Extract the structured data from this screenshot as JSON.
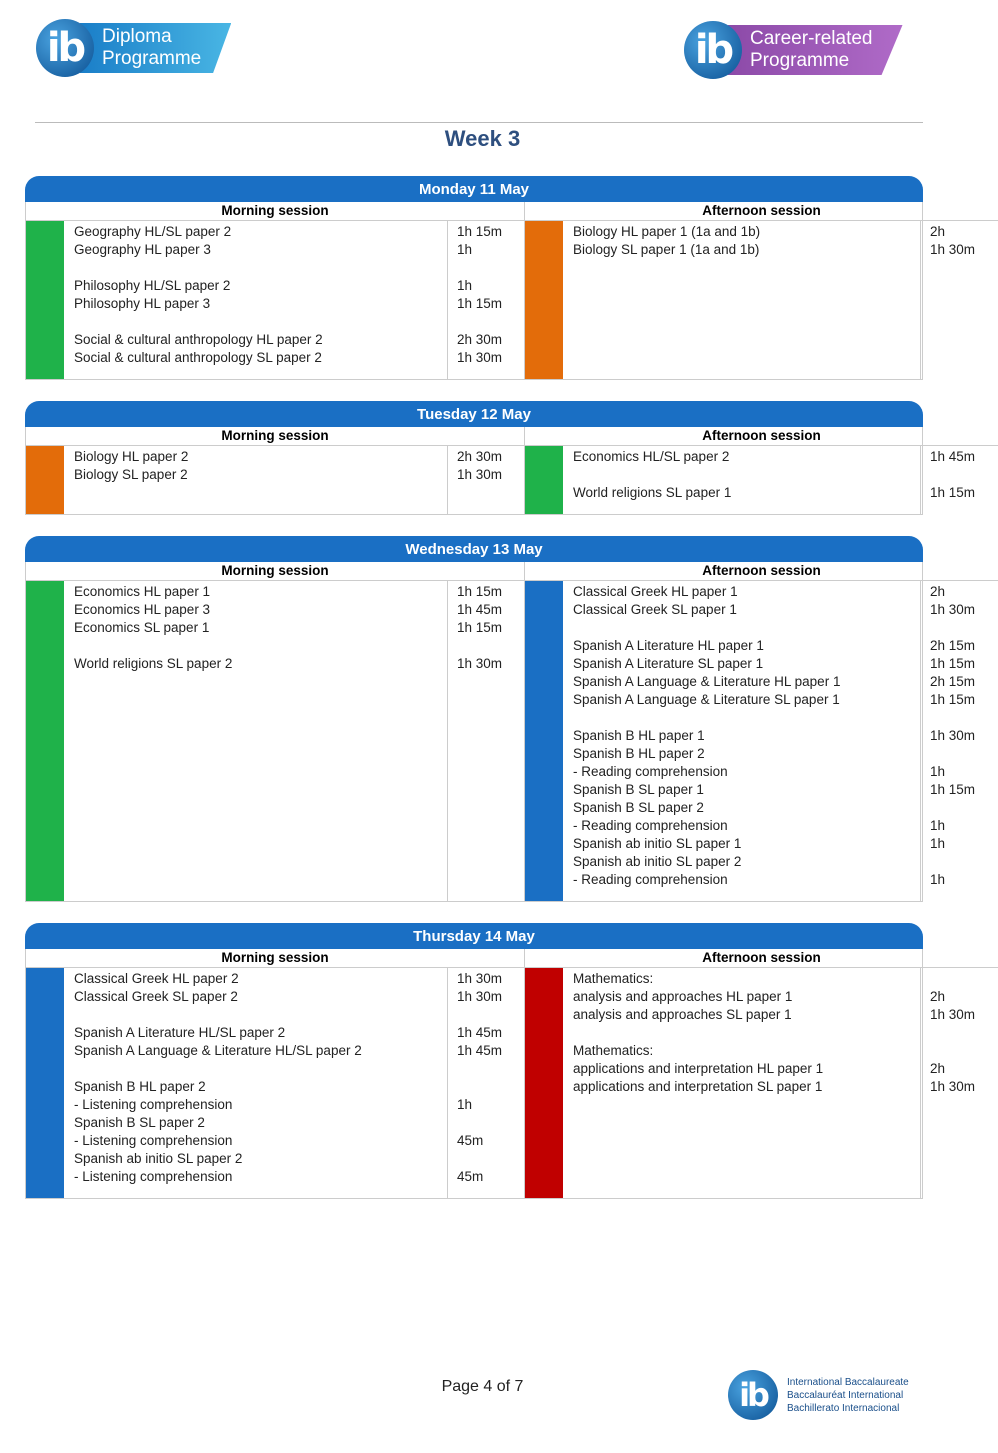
{
  "header": {
    "left_logo": {
      "mark": "ib",
      "line1": "Diploma",
      "line2": "Programme"
    },
    "right_logo": {
      "mark": "ib",
      "line1": "Career-related",
      "line2": "Programme"
    }
  },
  "title": "Week 3",
  "days": [
    {
      "title": "Monday 11 May",
      "morning": {
        "heading": "Morning session",
        "color": "#1fb24a",
        "groups": [
          [
            {
              "lines": [
                "Geography HL/SL paper 2"
              ],
              "duration": "1h 15m"
            },
            {
              "lines": [
                "Geography HL paper 3"
              ],
              "duration": "1h"
            }
          ],
          [
            {
              "lines": [
                "Philosophy HL/SL paper 2"
              ],
              "duration": "1h"
            },
            {
              "lines": [
                "Philosophy HL paper 3"
              ],
              "duration": "1h 15m"
            }
          ],
          [
            {
              "lines": [
                "Social & cultural anthropology HL paper 2"
              ],
              "duration": "2h 30m"
            },
            {
              "lines": [
                "Social & cultural anthropology SL paper 2"
              ],
              "duration": "1h 30m"
            }
          ]
        ]
      },
      "afternoon": {
        "heading": "Afternoon session",
        "color": "#e36c0a",
        "groups": [
          [
            {
              "lines": [
                "Biology HL paper 1 (1a and 1b)"
              ],
              "duration": "2h"
            },
            {
              "lines": [
                "Biology SL paper 1 (1a and 1b)"
              ],
              "duration": "1h 30m"
            }
          ]
        ]
      }
    },
    {
      "title": "Tuesday 12 May",
      "morning": {
        "heading": "Morning session",
        "color": "#e36c0a",
        "groups": [
          [
            {
              "lines": [
                "Biology HL paper 2"
              ],
              "duration": "2h 30m"
            },
            {
              "lines": [
                "Biology SL paper 2"
              ],
              "duration": "1h 30m"
            }
          ]
        ]
      },
      "afternoon": {
        "heading": "Afternoon session",
        "color": "#1fb24a",
        "groups": [
          [
            {
              "lines": [
                "Economics HL/SL paper 2"
              ],
              "duration": "1h 45m"
            }
          ],
          [
            {
              "lines": [
                "World religions SL paper 1"
              ],
              "duration": "1h 15m"
            }
          ]
        ]
      }
    },
    {
      "title": "Wednesday 13 May",
      "morning": {
        "heading": "Morning session",
        "color": "#1fb24a",
        "groups": [
          [
            {
              "lines": [
                "Economics HL paper 1"
              ],
              "duration": "1h 15m"
            },
            {
              "lines": [
                "Economics HL paper 3"
              ],
              "duration": "1h 45m"
            },
            {
              "lines": [
                "Economics SL paper 1"
              ],
              "duration": "1h 15m"
            }
          ],
          [
            {
              "lines": [
                "World religions SL paper 2"
              ],
              "duration": "1h 30m"
            }
          ]
        ]
      },
      "afternoon": {
        "heading": "Afternoon session",
        "color": "#1a6fc4",
        "groups": [
          [
            {
              "lines": [
                "Classical Greek HL paper 1"
              ],
              "duration": "2h"
            },
            {
              "lines": [
                "Classical Greek SL paper 1"
              ],
              "duration": "1h 30m"
            }
          ],
          [
            {
              "lines": [
                "Spanish A Literature HL paper 1"
              ],
              "duration": "2h 15m"
            },
            {
              "lines": [
                "Spanish A Literature SL paper 1"
              ],
              "duration": "1h 15m"
            },
            {
              "lines": [
                "Spanish A Language & Literature HL paper 1"
              ],
              "duration": "2h 15m"
            },
            {
              "lines": [
                "Spanish A Language & Literature SL paper 1"
              ],
              "duration": "1h 15m"
            }
          ],
          [
            {
              "lines": [
                "Spanish B HL paper 1"
              ],
              "duration": "1h 30m"
            },
            {
              "lines": [
                "Spanish B HL paper 2",
                "- Reading comprehension"
              ],
              "duration": "1h"
            },
            {
              "lines": [
                "Spanish B SL paper 1"
              ],
              "duration": "1h 15m"
            },
            {
              "lines": [
                "Spanish B SL paper 2",
                "- Reading comprehension"
              ],
              "duration": "1h"
            },
            {
              "lines": [
                "Spanish ab initio SL paper 1"
              ],
              "duration": "1h"
            },
            {
              "lines": [
                "Spanish ab initio SL paper 2",
                "- Reading comprehension"
              ],
              "duration": "1h"
            }
          ]
        ]
      }
    },
    {
      "title": "Thursday 14 May",
      "morning": {
        "heading": "Morning session",
        "color": "#1a6fc4",
        "groups": [
          [
            {
              "lines": [
                "Classical Greek HL paper 2"
              ],
              "duration": "1h 30m"
            },
            {
              "lines": [
                "Classical Greek SL paper 2"
              ],
              "duration": "1h 30m"
            }
          ],
          [
            {
              "lines": [
                "Spanish A Literature HL/SL paper 2"
              ],
              "duration": "1h 45m"
            },
            {
              "lines": [
                "Spanish A Language & Literature HL/SL paper 2"
              ],
              "duration": "1h 45m"
            }
          ],
          [
            {
              "lines": [
                "Spanish B HL paper 2",
                "- Listening comprehension"
              ],
              "duration": "1h"
            },
            {
              "lines": [
                "Spanish B SL paper 2",
                "- Listening comprehension"
              ],
              "duration": "45m"
            },
            {
              "lines": [
                "Spanish ab initio SL paper 2",
                "- Listening comprehension"
              ],
              "duration": "45m"
            }
          ]
        ]
      },
      "afternoon": {
        "heading": "Afternoon session",
        "color": "#c00000",
        "groups": [
          [
            {
              "lines": [
                "Mathematics:"
              ]
            },
            {
              "lines": [
                "analysis and approaches HL paper 1"
              ],
              "duration": "2h"
            },
            {
              "lines": [
                "analysis and approaches SL paper 1"
              ],
              "duration": "1h 30m"
            }
          ],
          [
            {
              "lines": [
                "Mathematics:"
              ]
            },
            {
              "lines": [
                "applications and interpretation HL paper 1"
              ],
              "duration": "2h"
            },
            {
              "lines": [
                "applications and interpretation SL paper 1"
              ],
              "duration": "1h 30m"
            }
          ]
        ]
      }
    }
  ],
  "footer": {
    "page": "Page 4 of 7",
    "org_logo": {
      "mark": "ib",
      "lines": [
        "International Baccalaureate",
        "Baccalauréat International",
        "Bachillerato Internacional"
      ]
    }
  }
}
